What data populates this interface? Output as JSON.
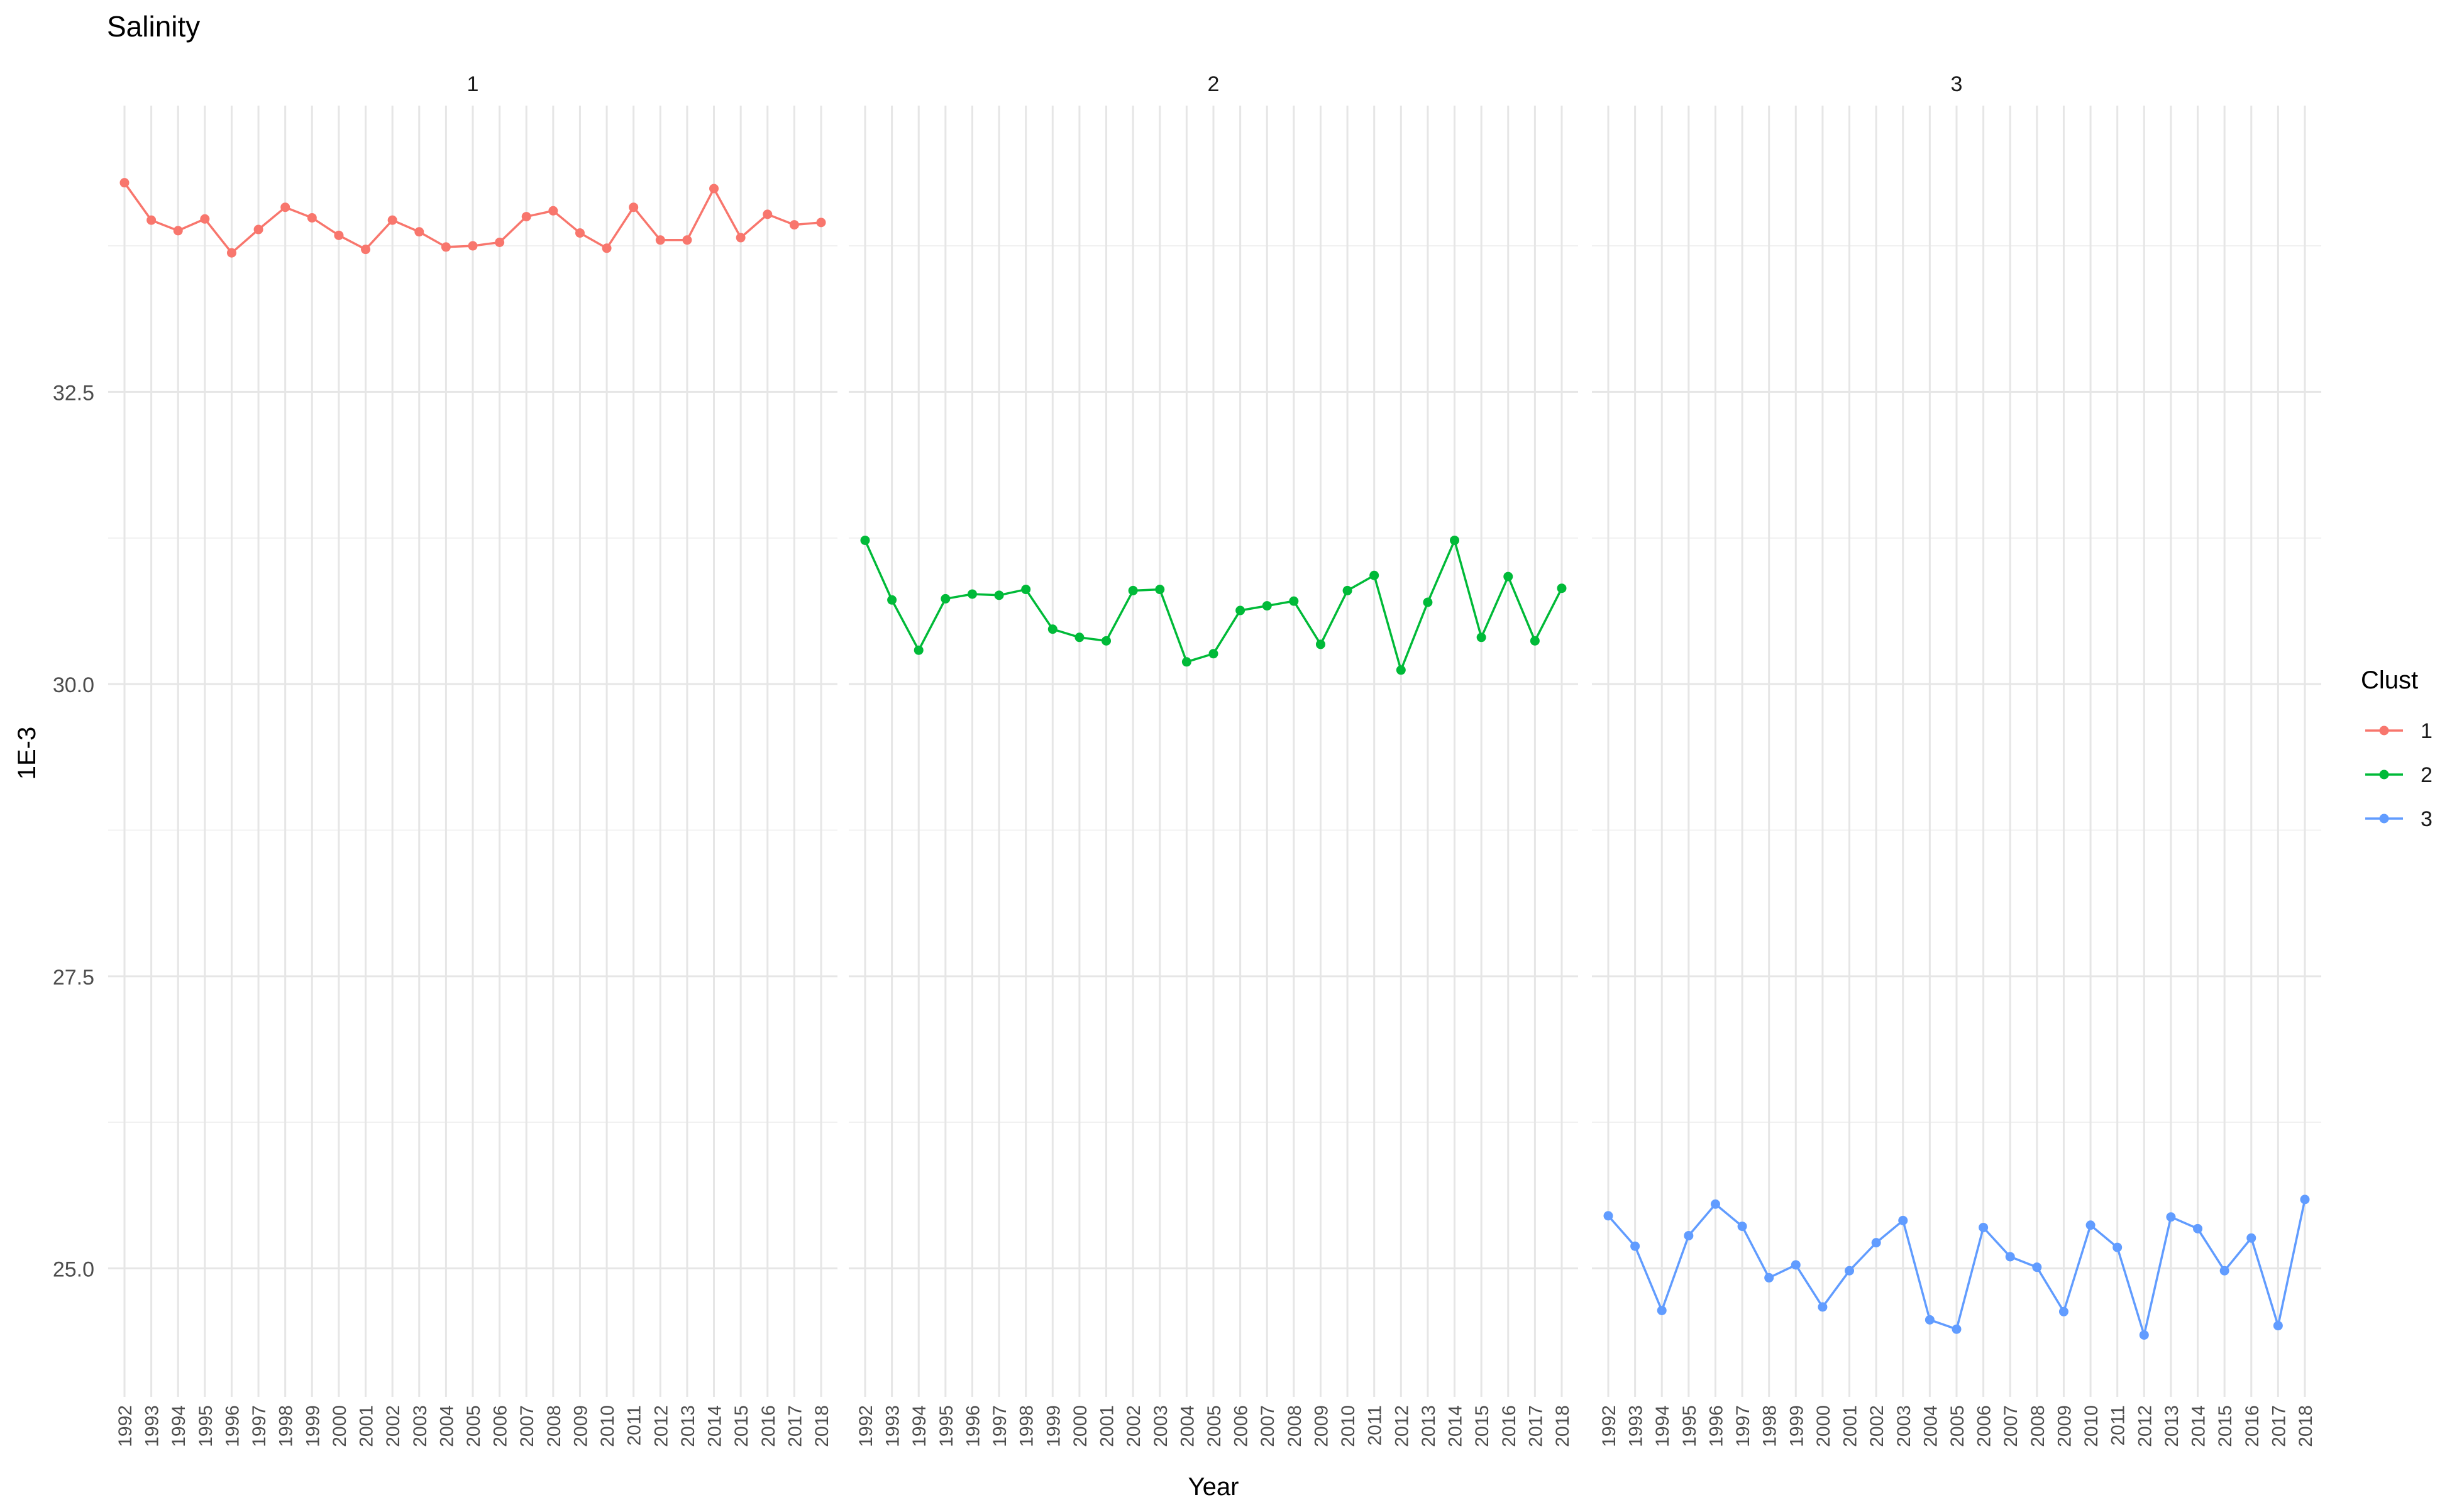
{
  "chart_data": {
    "type": "line",
    "title": "Salinity",
    "xlabel": "Year",
    "ylabel": "1E-3",
    "facet_labels": [
      "1",
      "2",
      "3"
    ],
    "legend": {
      "title": "Clust",
      "position": "right",
      "entries": [
        "1",
        "2",
        "3"
      ]
    },
    "colors": [
      "#F8766D",
      "#00BA38",
      "#619CFF"
    ],
    "grid": true,
    "ylim": [
      23.9,
      34.95
    ],
    "yticks": [
      25.0,
      27.5,
      30.0,
      32.5
    ],
    "ytick_labels": [
      "25.0",
      "27.5",
      "30.0",
      "32.5"
    ],
    "x": [
      "1992",
      "1993",
      "1994",
      "1995",
      "1996",
      "1997",
      "1998",
      "1999",
      "2000",
      "2001",
      "2002",
      "2003",
      "2004",
      "2005",
      "2006",
      "2007",
      "2008",
      "2009",
      "2010",
      "2011",
      "2012",
      "2013",
      "2014",
      "2015",
      "2016",
      "2017",
      "2018"
    ],
    "series": [
      {
        "name": "1",
        "values": [
          34.29,
          33.97,
          33.88,
          33.98,
          33.69,
          33.89,
          34.08,
          33.99,
          33.84,
          33.72,
          33.97,
          33.87,
          33.74,
          33.75,
          33.78,
          34.0,
          34.05,
          33.86,
          33.73,
          34.08,
          33.8,
          33.8,
          34.24,
          33.82,
          34.02,
          33.93,
          33.95
        ]
      },
      {
        "name": "2",
        "values": [
          31.23,
          30.72,
          30.29,
          30.73,
          30.77,
          30.76,
          30.81,
          30.47,
          30.4,
          30.37,
          30.8,
          30.81,
          30.19,
          30.26,
          30.63,
          30.67,
          30.71,
          30.34,
          30.8,
          30.93,
          30.12,
          30.7,
          31.23,
          30.4,
          30.92,
          30.37,
          30.82
        ]
      },
      {
        "name": "3",
        "values": [
          25.45,
          25.19,
          24.64,
          25.28,
          25.55,
          25.36,
          24.92,
          25.03,
          24.67,
          24.98,
          25.22,
          25.41,
          24.56,
          24.48,
          25.35,
          25.1,
          25.01,
          24.63,
          25.37,
          25.18,
          24.43,
          25.44,
          25.34,
          24.98,
          25.26,
          24.51,
          25.59
        ]
      }
    ]
  }
}
